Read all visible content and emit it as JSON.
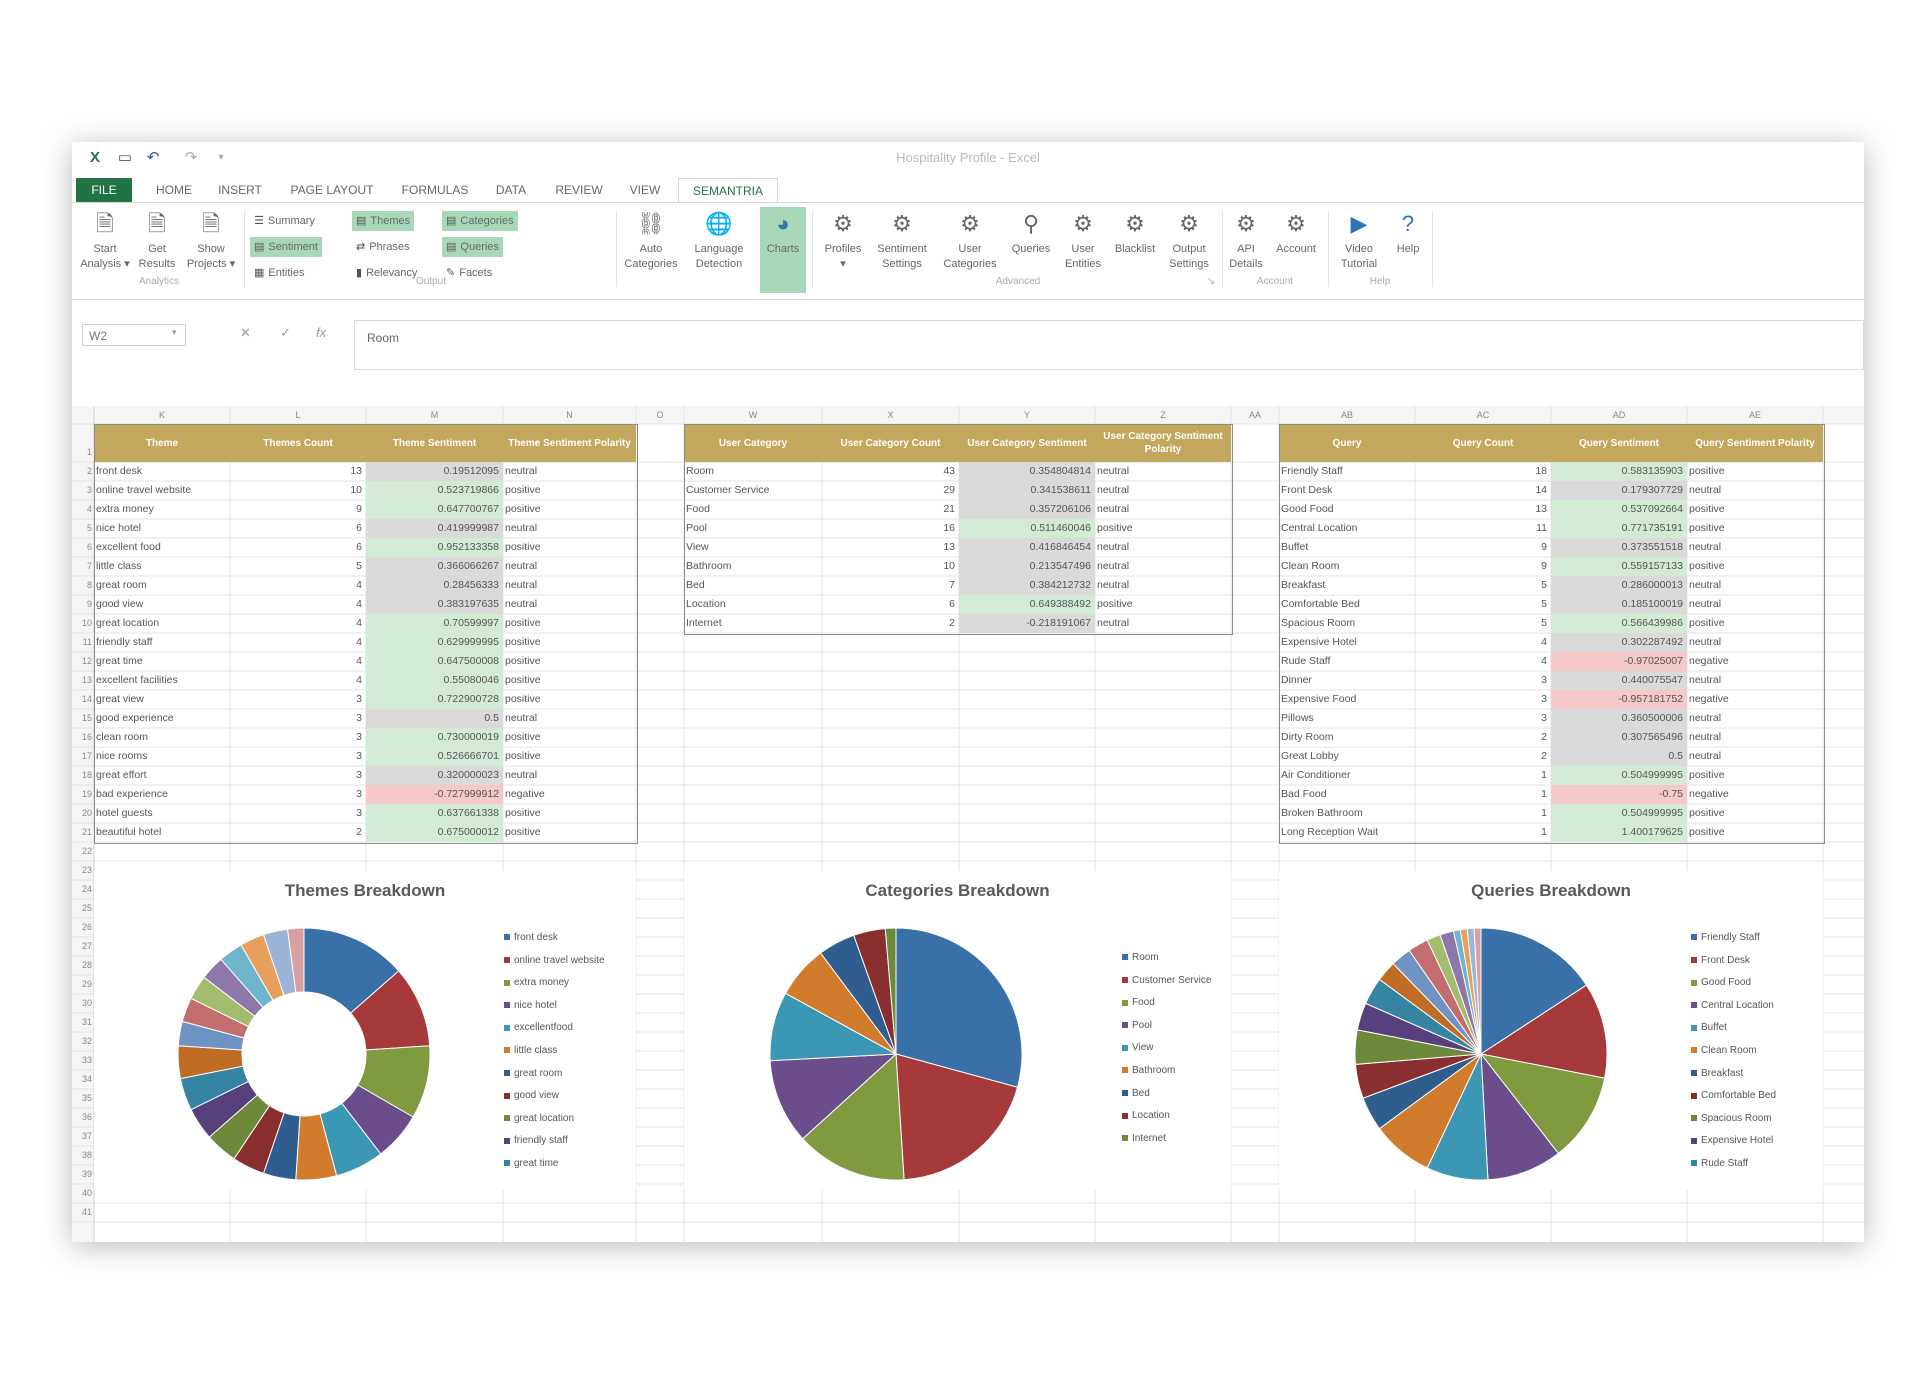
{
  "window": {
    "title": "Hospitality Profile - Excel"
  },
  "quick_access": {
    "excel": "X",
    "save": "▭",
    "undo": "↶",
    "redo": "↷",
    "more": "▾"
  },
  "tabs": [
    "FILE",
    "HOME",
    "INSERT",
    "PAGE LAYOUT",
    "FORMULAS",
    "DATA",
    "REVIEW",
    "VIEW",
    "SEMANTRIA"
  ],
  "ribbon": {
    "start_analysis": "Start\nAnalysis ▾",
    "get_results": "Get\nResults",
    "show_projects": "Show\nProjects ▾",
    "group_analytics": "Analytics",
    "summary": "Summary",
    "themes": "Themes",
    "categories": "Categories",
    "sentiment": "Sentiment",
    "phrases": "Phrases",
    "queries": "Queries",
    "entities": "Entities",
    "relevancy": "Relevancy",
    "facets": "Facets",
    "group_output": "Output",
    "auto_categories": "Auto\nCategories",
    "language_detection": "Language\nDetection",
    "charts": "Charts",
    "profiles": "Profiles\n▾",
    "sentiment_settings": "Sentiment\nSettings",
    "user_categories": "User\nCategories",
    "queries_btn": "Queries",
    "user_entities": "User\nEntities",
    "blacklist": "Blacklist",
    "output_settings": "Output\nSettings",
    "group_advanced": "Advanced",
    "api_details": "API\nDetails",
    "account": "Account",
    "group_account": "Account",
    "video_tutorial": "Video\nTutorial",
    "help": "Help",
    "group_help": "Help"
  },
  "formula_bar": {
    "name_box": "W2",
    "value": "Room",
    "cancel": "✕",
    "enter": "✓",
    "fx": "fx"
  },
  "columns": {
    "left": [
      "K",
      "L",
      "M",
      "N"
    ],
    "o": "O",
    "middle": [
      "W",
      "X",
      "Y",
      "Z"
    ],
    "aa": "AA",
    "right": [
      "AB",
      "AC",
      "AD",
      "AE"
    ]
  },
  "row_numbers": [
    "1",
    "2",
    "3",
    "4",
    "5",
    "6",
    "7",
    "8",
    "9",
    "10",
    "11",
    "12",
    "13",
    "14",
    "15",
    "16",
    "17",
    "18",
    "19",
    "20",
    "21",
    "22",
    "23",
    "24",
    "25",
    "26",
    "27",
    "28",
    "29",
    "30",
    "31",
    "32",
    "33",
    "34",
    "35",
    "36",
    "37",
    "38",
    "39",
    "40",
    "41"
  ],
  "themes_table": {
    "headers": [
      "Theme",
      "Themes Count",
      "Theme Sentiment",
      "Theme Sentiment Polarity"
    ],
    "rows": [
      [
        "front desk",
        "13",
        "0.19512095",
        "neutral",
        "gr"
      ],
      [
        "online travel website",
        "10",
        "0.523719866",
        "positive",
        "g"
      ],
      [
        "extra money",
        "9",
        "0.647700767",
        "positive",
        "g"
      ],
      [
        "nice hotel",
        "6",
        "0.419999987",
        "neutral",
        "gr"
      ],
      [
        "excellent food",
        "6",
        "0.952133358",
        "positive",
        "g"
      ],
      [
        "little class",
        "5",
        "0.366066267",
        "neutral",
        "gr"
      ],
      [
        "great room",
        "4",
        "0.28456333",
        "neutral",
        "gr"
      ],
      [
        "good view",
        "4",
        "0.383197635",
        "neutral",
        "gr"
      ],
      [
        "great location",
        "4",
        "0.70599997",
        "positive",
        "g"
      ],
      [
        "friendly staff",
        "4",
        "0.629999995",
        "positive",
        "g"
      ],
      [
        "great time",
        "4",
        "0.647500008",
        "positive",
        "g"
      ],
      [
        "excellent facilities",
        "4",
        "0.55080046",
        "positive",
        "g"
      ],
      [
        "great view",
        "3",
        "0.722900728",
        "positive",
        "g"
      ],
      [
        "good experience",
        "3",
        "0.5",
        "neutral",
        "gr"
      ],
      [
        "clean room",
        "3",
        "0.730000019",
        "positive",
        "g"
      ],
      [
        "nice rooms",
        "3",
        "0.526666701",
        "positive",
        "g"
      ],
      [
        "great effort",
        "3",
        "0.320000023",
        "neutral",
        "gr"
      ],
      [
        "bad experience",
        "3",
        "-0.727999912",
        "negative",
        "r"
      ],
      [
        "hotel guests",
        "3",
        "0.637661338",
        "positive",
        "g"
      ],
      [
        "beautiful hotel",
        "2",
        "0.675000012",
        "positive",
        "g"
      ]
    ]
  },
  "categories_table": {
    "headers": [
      "User Category",
      "User Category Count",
      "User Category Sentiment",
      "User Category Sentiment Polarity"
    ],
    "rows": [
      [
        "Room",
        "43",
        "0.354804814",
        "neutral",
        "gr"
      ],
      [
        "Customer Service",
        "29",
        "0.341538611",
        "neutral",
        "gr"
      ],
      [
        "Food",
        "21",
        "0.357206106",
        "neutral",
        "gr"
      ],
      [
        "Pool",
        "16",
        "0.511460046",
        "positive",
        "g"
      ],
      [
        "View",
        "13",
        "0.416846454",
        "neutral",
        "gr"
      ],
      [
        "Bathroom",
        "10",
        "0.213547496",
        "neutral",
        "gr"
      ],
      [
        "Bed",
        "7",
        "0.384212732",
        "neutral",
        "gr"
      ],
      [
        "Location",
        "6",
        "0.649388492",
        "positive",
        "g"
      ],
      [
        "Internet",
        "2",
        "-0.218191067",
        "neutral",
        "gr"
      ]
    ]
  },
  "queries_table": {
    "headers": [
      "Query",
      "Query Count",
      "Query Sentiment",
      "Query Sentiment Polarity"
    ],
    "rows": [
      [
        "Friendly Staff",
        "18",
        "0.583135903",
        "positive",
        "g"
      ],
      [
        "Front Desk",
        "14",
        "0.179307729",
        "neutral",
        "gr"
      ],
      [
        "Good Food",
        "13",
        "0.537092664",
        "positive",
        "g"
      ],
      [
        "Central Location",
        "11",
        "0.771735191",
        "positive",
        "g"
      ],
      [
        "Buffet",
        "9",
        "0.373551518",
        "neutral",
        "gr"
      ],
      [
        "Clean Room",
        "9",
        "0.559157133",
        "positive",
        "g"
      ],
      [
        "Breakfast",
        "5",
        "0.286000013",
        "neutral",
        "gr"
      ],
      [
        "Comfortable Bed",
        "5",
        "0.185100019",
        "neutral",
        "gr"
      ],
      [
        "Spacious Room",
        "5",
        "0.566439986",
        "positive",
        "g"
      ],
      [
        "Expensive Hotel",
        "4",
        "0.302287492",
        "neutral",
        "gr"
      ],
      [
        "Rude Staff",
        "4",
        "-0.97025007",
        "negative",
        "r"
      ],
      [
        "Dinner",
        "3",
        "0.440075547",
        "neutral",
        "gr"
      ],
      [
        "Expensive Food",
        "3",
        "-0.957181752",
        "negative",
        "r"
      ],
      [
        "Pillows",
        "3",
        "0.360500006",
        "neutral",
        "gr"
      ],
      [
        "Dirty Room",
        "2",
        "0.307565496",
        "neutral",
        "gr"
      ],
      [
        "Great Lobby",
        "2",
        "0.5",
        "neutral",
        "gr"
      ],
      [
        "Air Conditioner",
        "1",
        "0.504999995",
        "positive",
        "g"
      ],
      [
        "Bad Food",
        "1",
        "-0.75",
        "negative",
        "r"
      ],
      [
        "Broken Bathroom",
        "1",
        "0.504999995",
        "positive",
        "g"
      ],
      [
        "Long Reception Wait",
        "1",
        "1.400179625",
        "positive",
        "g"
      ]
    ]
  },
  "chart_data": [
    {
      "type": "pie",
      "donut": true,
      "title": "Themes Breakdown",
      "legend_position": "right",
      "categories": [
        "front desk",
        "online travel website",
        "extra money",
        "nice hotel",
        "excellent food",
        "little class",
        "great room",
        "good view",
        "great location",
        "friendly staff",
        "great time",
        "excellent facilities",
        "great view",
        "good experience",
        "clean room",
        "nice rooms",
        "great effort",
        "bad experience",
        "hotel guests",
        "beautiful hotel"
      ],
      "values": [
        13,
        10,
        9,
        6,
        6,
        5,
        4,
        4,
        4,
        4,
        4,
        4,
        3,
        3,
        3,
        3,
        3,
        3,
        3,
        2
      ],
      "legend_entries": [
        "front desk",
        "online travel website",
        "extra money",
        "nice hotel",
        "excellentfood",
        "little class",
        "great room",
        "good view",
        "great location",
        "friendly staff",
        "great time"
      ]
    },
    {
      "type": "pie",
      "title": "Categories Breakdown",
      "legend_position": "right",
      "categories": [
        "Room",
        "Customer Service",
        "Food",
        "Pool",
        "View",
        "Bathroom",
        "Bed",
        "Location",
        "Internet"
      ],
      "values": [
        43,
        29,
        21,
        16,
        13,
        10,
        7,
        6,
        2
      ],
      "legend_entries": [
        "Room",
        "Customer Service",
        "Food",
        "Pool",
        "View",
        "Bathroom",
        "Bed",
        "Location",
        "Internet"
      ]
    },
    {
      "type": "pie",
      "title": "Queries Breakdown",
      "legend_position": "right",
      "categories": [
        "Friendly Staff",
        "Front Desk",
        "Good Food",
        "Central Location",
        "Buffet",
        "Clean Room",
        "Breakfast",
        "Comfortable Bed",
        "Spacious Room",
        "Expensive Hotel",
        "Rude Staff",
        "Dinner",
        "Expensive Food",
        "Pillows",
        "Dirty Room",
        "Great Lobby",
        "Air Conditioner",
        "Bad Food",
        "Broken Bathroom",
        "Long Reception Wait"
      ],
      "values": [
        18,
        14,
        13,
        11,
        9,
        9,
        5,
        5,
        5,
        4,
        4,
        3,
        3,
        3,
        2,
        2,
        1,
        1,
        1,
        1
      ],
      "legend_entries": [
        "Friendly Staff",
        "Front Desk",
        "Good Food",
        "Central Location",
        "Buffet",
        "Clean Room",
        "Breakfast",
        "Comfortable Bed",
        "Spacious Room",
        "Expensive Hotel",
        "Rude Staff"
      ]
    }
  ],
  "palette": [
    "#3a70a8",
    "#a63a3a",
    "#7f9a3f",
    "#6a4d8a",
    "#3c97b4",
    "#d17c2c",
    "#2e5d8e",
    "#8a2f30",
    "#6c8a3a",
    "#56417c",
    "#3585a2",
    "#bf6c24",
    "#6f94c3",
    "#c26e6e",
    "#a3bd6e",
    "#8e77aa",
    "#6fb5cc",
    "#e79f5d",
    "#9bb3d6",
    "#d7a1a1"
  ]
}
